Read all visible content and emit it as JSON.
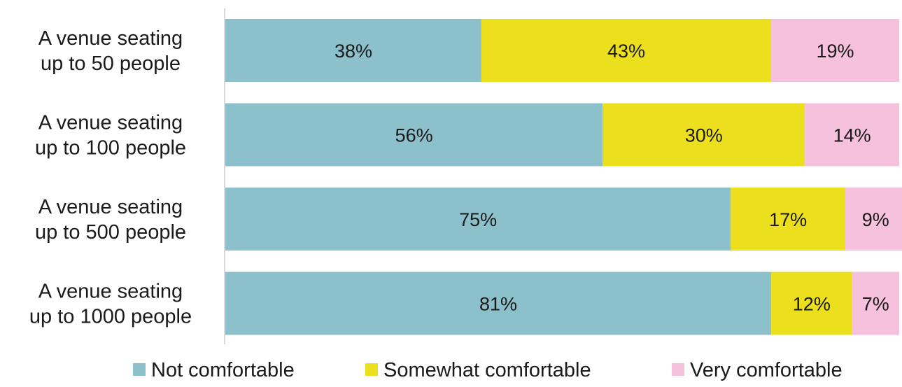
{
  "chart_data": {
    "type": "bar",
    "orientation": "horizontal",
    "stacked": true,
    "normalized": true,
    "categories": [
      [
        "A venue seating",
        "up to 50 people"
      ],
      [
        "A venue seating",
        "up to 100 people"
      ],
      [
        "A venue seating",
        "up to 500 people"
      ],
      [
        "A venue seating",
        "up to 1000 people"
      ]
    ],
    "series": [
      {
        "name": "Not comfortable",
        "color": "#8cc1cc",
        "values": [
          38,
          56,
          75,
          81
        ],
        "labels": [
          "38%",
          "56%",
          "75%",
          "81%"
        ]
      },
      {
        "name": "Somewhat comfortable",
        "color": "#ebdf1e",
        "values": [
          43,
          30,
          17,
          12
        ],
        "labels": [
          "43%",
          "30%",
          "17%",
          "12%"
        ]
      },
      {
        "name": "Very comfortable",
        "color": "#f6c1dc",
        "values": [
          19,
          14,
          9,
          7
        ],
        "labels": [
          "19%",
          "14%",
          "9%",
          "7%"
        ]
      }
    ],
    "xlim": [
      0,
      100
    ],
    "grid": false,
    "legend_position": "bottom"
  }
}
